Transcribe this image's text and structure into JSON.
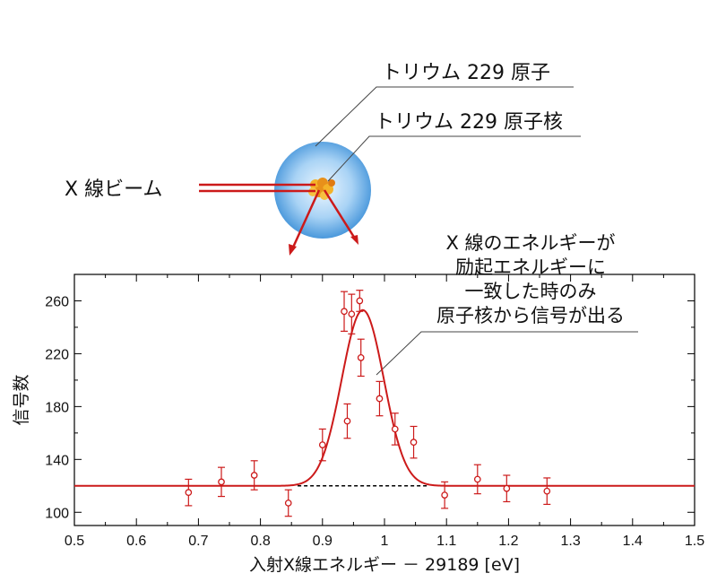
{
  "figure": {
    "label_atom": "トリウム 229 原子",
    "label_nucleus": "トリウム 229 原子核",
    "label_beam": "X 線ビーム",
    "colors": {
      "beam": "#cc1a1a",
      "atom_center": "#e8f4ff",
      "atom_edge": "#3a8fd8",
      "nucleus": "#f2a01a"
    }
  },
  "annotation": {
    "lines": [
      "X 線のエネルギーが",
      "励起エネルギーに",
      "一致した時のみ",
      "原子核から信号が出る"
    ]
  },
  "chart_data": {
    "type": "scatter",
    "xlabel": "入射X線エネルギー － 29189 [eV]",
    "ylabel": "信号数",
    "xlim": [
      0.5,
      1.5
    ],
    "ylim": [
      90,
      280
    ],
    "xticks": [
      0.5,
      0.6,
      0.7,
      0.8,
      0.9,
      1,
      1.1,
      1.2,
      1.3,
      1.4,
      1.5
    ],
    "yticks": [
      100,
      140,
      180,
      220,
      260
    ],
    "grid": false,
    "series": [
      {
        "kind": "points_with_error",
        "color": "#cc1a1a",
        "x": [
          0.684,
          0.737,
          0.79,
          0.845,
          0.9,
          0.935,
          0.94,
          0.947,
          0.96,
          0.962,
          0.992,
          1.017,
          1.047,
          1.097,
          1.15,
          1.197,
          1.262
        ],
        "y": [
          115,
          123,
          128,
          107,
          151,
          252,
          169,
          250,
          260,
          217,
          186,
          163,
          153,
          113,
          125,
          118,
          116
        ],
        "err": [
          10,
          11,
          11,
          10,
          12,
          15,
          13,
          15,
          8,
          14,
          13,
          12,
          12,
          10,
          11,
          10,
          10
        ]
      },
      {
        "kind": "gaussian_fit",
        "color": "#cc1a1a",
        "baseline": 120,
        "amplitude": 133,
        "center": 0.965,
        "sigma": 0.034
      },
      {
        "kind": "baseline_dashed",
        "color": "#000000",
        "x": [
          0.86,
          1.07
        ],
        "y": [
          120,
          120
        ]
      }
    ]
  }
}
